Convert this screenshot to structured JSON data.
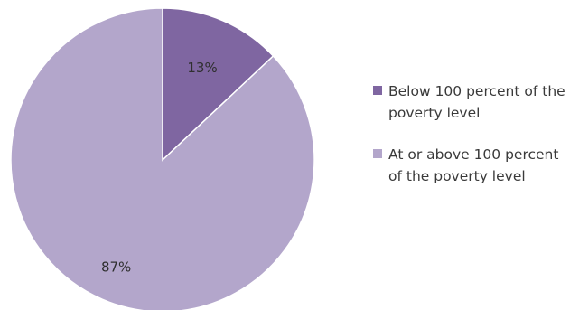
{
  "chart_data": {
    "type": "pie",
    "slices": [
      {
        "label": "Below 100 percent of the poverty level",
        "value": 13,
        "display": "13%",
        "color": "#7f66a1"
      },
      {
        "label": "At or above 100 percent of the poverty level",
        "value": 87,
        "display": "87%",
        "color": "#b3a6cb"
      }
    ],
    "start_angle": "12 o'clock, clockwise",
    "legend_position": "right",
    "legend": [
      {
        "label": "Below 100 percent of the poverty level",
        "color": "#7f66a1"
      },
      {
        "label": "At or above 100 percent of the poverty level",
        "color": "#b3a6cb"
      }
    ]
  }
}
